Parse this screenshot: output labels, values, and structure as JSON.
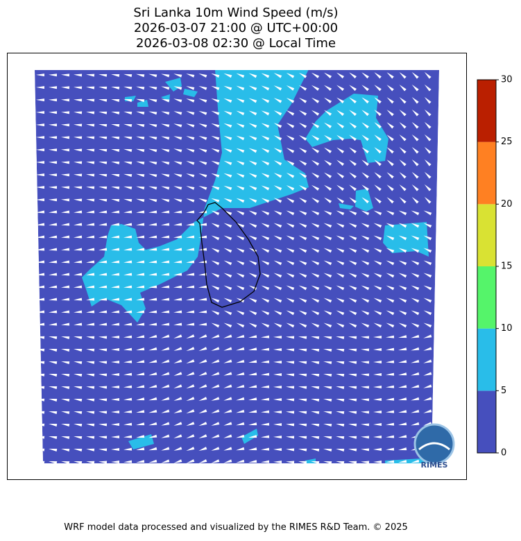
{
  "chart_data": {
    "type": "filled-contour-map",
    "title": [
      "Sri Lanka 10m Wind Speed (m/s)",
      "2026-03-07 21:00 @ UTC+00:00",
      "2026-03-08 02:30 @ Local Time"
    ],
    "colorbar": {
      "bins": [
        0,
        5,
        10,
        15,
        20,
        25,
        30
      ],
      "colors": [
        "#464fbd",
        "#29bde9",
        "#55f46a",
        "#d9e233",
        "#ff8022",
        "#ba1f00"
      ],
      "ylim": [
        0,
        30
      ],
      "yticks": [
        0,
        5,
        10,
        15,
        20,
        25,
        30
      ]
    },
    "logo_text": "RIMES"
  },
  "footer": "WRF model data processed and visualized by the RIMES R&D Team. © 2025"
}
